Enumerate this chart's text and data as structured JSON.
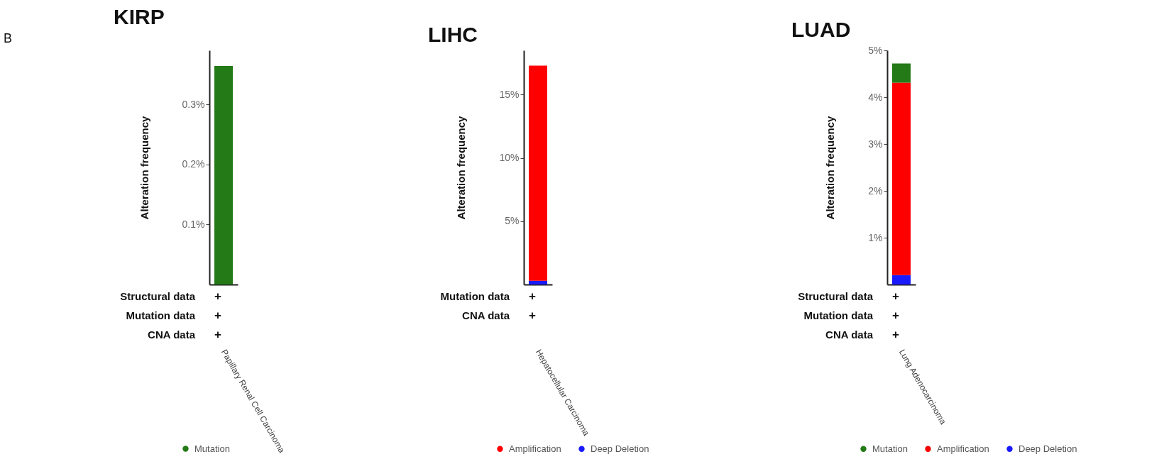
{
  "chart_data": [
    {
      "type": "bar",
      "title": "KIRP",
      "ylabel": "Alteration frequency",
      "categories": [
        "Papillary Renal Cell Carcinoma"
      ],
      "stacked": true,
      "legend": "bottom",
      "grid": false,
      "series": [
        {
          "name": "Mutation",
          "color": "#237a17",
          "values": [
            0.364
          ]
        }
      ],
      "ylim": [
        0,
        0.39
      ],
      "yticks": [
        {
          "value": 0.1,
          "label": "0.1%"
        },
        {
          "value": 0.2,
          "label": "0.2%"
        },
        {
          "value": 0.3,
          "label": "0.3%"
        }
      ],
      "annotations": [
        "B",
        "Structural data",
        "+",
        "Mutation data",
        "+",
        "CNA data",
        "+"
      ]
    },
    {
      "type": "bar",
      "title": "LIHC",
      "ylabel": "Alteration frequency",
      "categories": [
        "Hepatocellular Carcinoma"
      ],
      "stacked": true,
      "legend": "bottom",
      "grid": false,
      "series": [
        {
          "name": "Deep Deletion",
          "color": "#1a1aff",
          "values": [
            0.3
          ]
        },
        {
          "name": "Amplification",
          "color": "#ff0000",
          "values": [
            17.0
          ]
        }
      ],
      "ylim": [
        0,
        18.5
      ],
      "yticks": [
        {
          "value": 5,
          "label": "5%"
        },
        {
          "value": 10,
          "label": "10%"
        },
        {
          "value": 15,
          "label": "15%"
        }
      ],
      "annotations": [
        "Mutation data",
        "+",
        "CNA data",
        "+"
      ]
    },
    {
      "type": "bar",
      "title": "LUAD",
      "ylabel": "Alteration frequency",
      "categories": [
        "Lung Adenocarcinoma"
      ],
      "stacked": true,
      "legend": "bottom",
      "grid": false,
      "series": [
        {
          "name": "Deep Deletion",
          "color": "#1a1aff",
          "values": [
            0.2
          ]
        },
        {
          "name": "Amplification",
          "color": "#ff0000",
          "values": [
            4.11
          ]
        },
        {
          "name": "Mutation",
          "color": "#237a17",
          "values": [
            0.41
          ]
        }
      ],
      "ylim": [
        0,
        5
      ],
      "yticks": [
        {
          "value": 1,
          "label": "1%"
        },
        {
          "value": 2,
          "label": "2%"
        },
        {
          "value": 3,
          "label": "3%"
        },
        {
          "value": 4,
          "label": "4%"
        },
        {
          "value": 5,
          "label": "5%"
        }
      ],
      "annotations": [
        "Structural data",
        "+",
        "Mutation data",
        "+",
        "CNA data",
        "+"
      ]
    }
  ]
}
